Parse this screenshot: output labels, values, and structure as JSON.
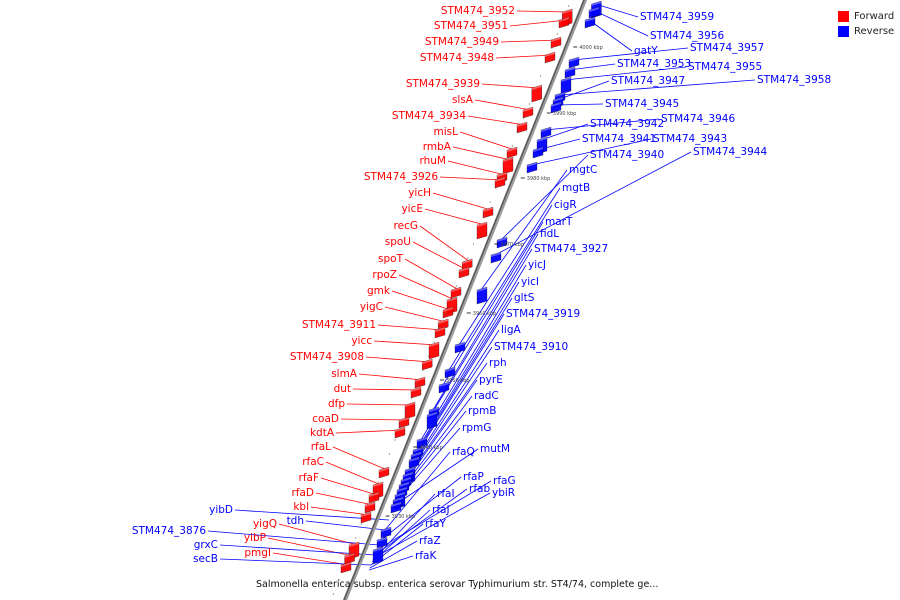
{
  "legend": {
    "forward_label": "Forward",
    "reverse_label": "Reverse",
    "forward_color": "#ff0000",
    "reverse_color": "#0000ff"
  },
  "caption": "Salmonella enterica subsp. enterica serovar Typhimurium str. ST4/74, complete ge...",
  "scale_unit": "kbp",
  "ticks": [
    "4000 kbp",
    "3990 kbp",
    "3980 kbp",
    "3970 kbp",
    "3960 kbp",
    "3950 kbp",
    "3940 kbp",
    "3930 kbp"
  ],
  "forward_genes": [
    "STM474_3952",
    "STM474_3951",
    "STM474_3949",
    "STM474_3948",
    "STM474_3939",
    "slsA",
    "STM474_3934",
    "misL",
    "rmbA",
    "rhuM",
    "STM474_3926",
    "yicH",
    "yicE",
    "recG",
    "spoU",
    "spoT",
    "rpoZ",
    "gmk",
    "yigC",
    "STM474_3911",
    "yicc",
    "STM474_3908",
    "slmA",
    "dut",
    "dfp",
    "coaD",
    "kdtA",
    "rfaL",
    "rfaC",
    "rfaF",
    "rfaD",
    "kbl",
    "yigQ",
    "yibP",
    "pmgI"
  ],
  "reverse_genes_left": [
    "yibD",
    "tdh",
    "STM474_3876",
    "grxC",
    "secB"
  ],
  "reverse_genes_right": [
    "STM474_3959",
    "STM474_3956",
    "gatY",
    "STM474_3957",
    "STM474_3953",
    "STM474_3955",
    "STM474_3958",
    "STM474_3947",
    "STM474_3945",
    "STM474_3946",
    "STM474_3942",
    "STM474_3941",
    "STM474_3943",
    "STM474_3940",
    "STM474_3944",
    "mgtC",
    "mgtB",
    "cigR",
    "marT",
    "fidL",
    "STM474_3927",
    "yicJ",
    "yicI",
    "gltS",
    "STM474_3919",
    "ligA",
    "STM474_3910",
    "rph",
    "pyrE",
    "radC",
    "rpmB",
    "rpmG",
    "mutM",
    "rfaQ",
    "rfaP",
    "rfaG",
    "rfab",
    "ybiR",
    "rfaI",
    "rfaJ",
    "rfaY",
    "rfaZ",
    "rfaK"
  ]
}
